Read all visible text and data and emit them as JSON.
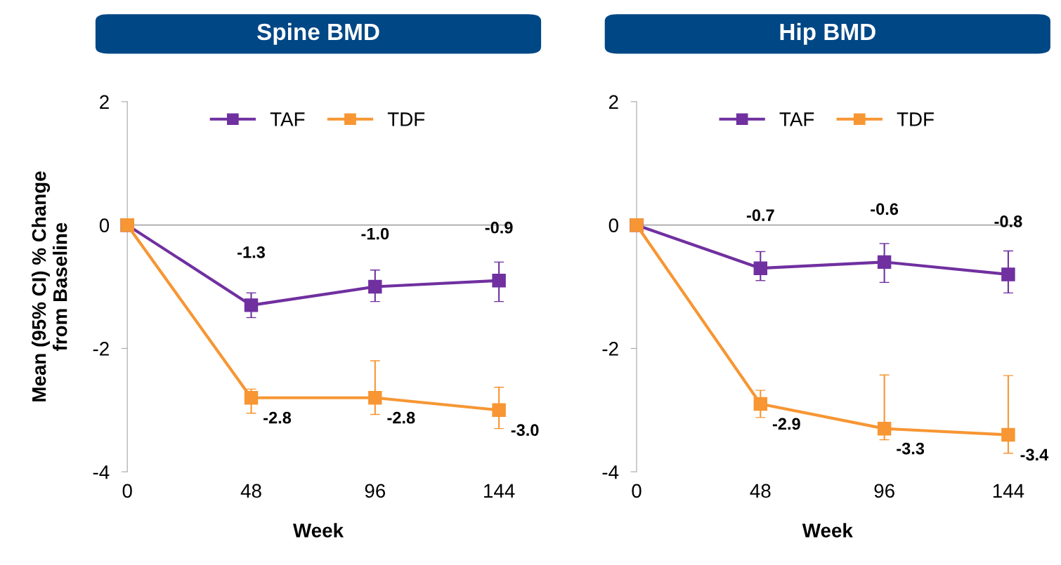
{
  "chart_data": [
    {
      "type": "line",
      "title": "Spine BMD",
      "xlabel": "Week",
      "ylabel": "Mean (95% CI) % Change\nfrom Baseline",
      "x": [
        0,
        48,
        96,
        144
      ],
      "xlim": [
        0,
        148
      ],
      "xticks": [
        0,
        48,
        96,
        144
      ],
      "ylim": [
        -4,
        2
      ],
      "yticks": [
        -4,
        -2,
        0,
        2
      ],
      "marker": "square",
      "legend": "top",
      "grid": false,
      "data_labels": true,
      "ref_lines": [
        {
          "axis": "y",
          "value": 0,
          "label": null,
          "color": "#a6a6a6"
        }
      ],
      "series": [
        {
          "name": "TAF",
          "color": "#7030a0",
          "values": [
            0,
            -1.3,
            -1.0,
            -0.9
          ],
          "value_labels": [
            null,
            "-1.3",
            "-1.0",
            "-0.9"
          ],
          "errors": [
            null,
            [
              -1.5,
              -1.1
            ],
            [
              -1.24,
              -0.73
            ],
            [
              -1.24,
              -0.6
            ]
          ]
        },
        {
          "name": "TDF",
          "color": "#f79633",
          "values": [
            0,
            -2.8,
            -2.8,
            -3.0
          ],
          "value_labels": [
            null,
            "-2.8",
            "-2.8",
            "-3.0"
          ],
          "errors": [
            null,
            [
              -3.05,
              -2.66
            ],
            [
              -3.07,
              -2.2
            ],
            [
              -3.3,
              -2.63
            ]
          ]
        }
      ]
    },
    {
      "type": "line",
      "title": "Hip BMD",
      "xlabel": "Week",
      "x": [
        0,
        48,
        96,
        144
      ],
      "xlim": [
        0,
        148
      ],
      "xticks": [
        0,
        48,
        96,
        144
      ],
      "ylim": [
        -4,
        2
      ],
      "yticks": [
        -4,
        -2,
        0,
        2
      ],
      "marker": "square",
      "legend": "top",
      "grid": false,
      "data_labels": true,
      "ref_lines": [
        {
          "axis": "y",
          "value": 0,
          "label": null,
          "color": "#a6a6a6"
        }
      ],
      "series": [
        {
          "name": "TAF",
          "color": "#7030a0",
          "values": [
            0,
            -0.7,
            -0.6,
            -0.8
          ],
          "value_labels": [
            null,
            "-0.7",
            "-0.6",
            "-0.8"
          ],
          "errors": [
            null,
            [
              -0.9,
              -0.43
            ],
            [
              -0.93,
              -0.3
            ],
            [
              -1.1,
              -0.42
            ]
          ]
        },
        {
          "name": "TDF",
          "color": "#f79633",
          "values": [
            0,
            -2.9,
            -3.3,
            -3.4
          ],
          "value_labels": [
            null,
            "-2.9",
            "-3.3",
            "-3.4"
          ],
          "errors": [
            null,
            [
              -3.12,
              -2.68
            ],
            [
              -3.48,
              -2.43
            ],
            [
              -3.7,
              -2.44
            ]
          ]
        }
      ]
    }
  ]
}
